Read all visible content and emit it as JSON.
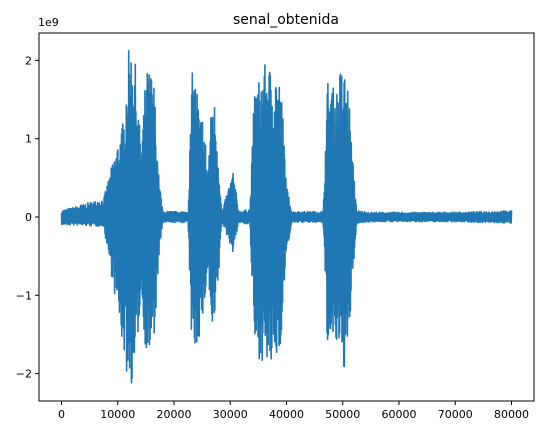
{
  "chart_data": {
    "type": "line",
    "title": "senal_obtenida",
    "xlabel": "",
    "ylabel": "",
    "y_offset_label": "1e9",
    "xlim": [
      -4000,
      84000
    ],
    "ylim": [
      -2.35,
      2.35
    ],
    "x_ticks": [
      0,
      10000,
      20000,
      30000,
      40000,
      50000,
      60000,
      70000,
      80000
    ],
    "x_tick_labels": [
      "0",
      "10000",
      "20000",
      "30000",
      "40000",
      "50000",
      "60000",
      "70000",
      "80000"
    ],
    "y_ticks": [
      -2,
      -1,
      0,
      1,
      2
    ],
    "y_tick_labels": [
      "−2",
      "−1",
      "0",
      "1",
      "2"
    ],
    "grid": false,
    "series": [
      {
        "name": "senal_obtenida",
        "color": "#1f77b4",
        "x": [
          0,
          7500,
          11200,
          11800,
          12500,
          13000,
          13500,
          14200,
          15000,
          15800,
          16500,
          17200,
          18000,
          22500,
          23200,
          24000,
          24600,
          25200,
          26000,
          26800,
          27300,
          27800,
          28500,
          30500,
          31500,
          33500,
          34300,
          35000,
          35800,
          36600,
          37400,
          38200,
          38800,
          39300,
          40000,
          41000,
          46500,
          47300,
          48000,
          48800,
          49600,
          50400,
          51000,
          51600,
          52500,
          55000,
          60000,
          65000,
          70000,
          75000,
          80000
        ],
        "envelope_max": [
          0.08,
          0.24,
          1.3,
          2.12,
          2.16,
          2.1,
          1.5,
          0.9,
          1.85,
          1.9,
          1.7,
          0.6,
          0.07,
          0.07,
          1.85,
          1.75,
          1.25,
          1.35,
          0.6,
          1.6,
          1.45,
          0.9,
          0.05,
          0.6,
          0.07,
          0.1,
          1.65,
          1.75,
          1.9,
          2.0,
          1.85,
          1.9,
          1.75,
          1.4,
          0.4,
          0.07,
          0.07,
          1.75,
          1.7,
          1.6,
          1.9,
          1.85,
          1.7,
          0.9,
          0.08,
          0.06,
          0.06,
          0.06,
          0.06,
          0.07,
          0.08
        ],
        "envelope_min": [
          -0.1,
          -0.12,
          -1.8,
          -2.15,
          -2.14,
          -2.05,
          -1.6,
          -1.0,
          -1.75,
          -1.8,
          -1.6,
          -0.65,
          -0.07,
          -0.07,
          -1.75,
          -1.7,
          -1.5,
          -1.3,
          -0.7,
          -1.6,
          -1.4,
          -0.95,
          -0.06,
          -0.45,
          -0.07,
          -0.1,
          -1.7,
          -1.8,
          -1.85,
          -1.95,
          -1.95,
          -1.85,
          -1.7,
          -1.3,
          -0.45,
          -0.07,
          -0.07,
          -1.7,
          -1.75,
          -1.65,
          -1.9,
          -1.95,
          -1.8,
          -0.95,
          -0.08,
          -0.06,
          -0.06,
          -0.06,
          -0.06,
          -0.07,
          -0.08
        ]
      }
    ]
  }
}
